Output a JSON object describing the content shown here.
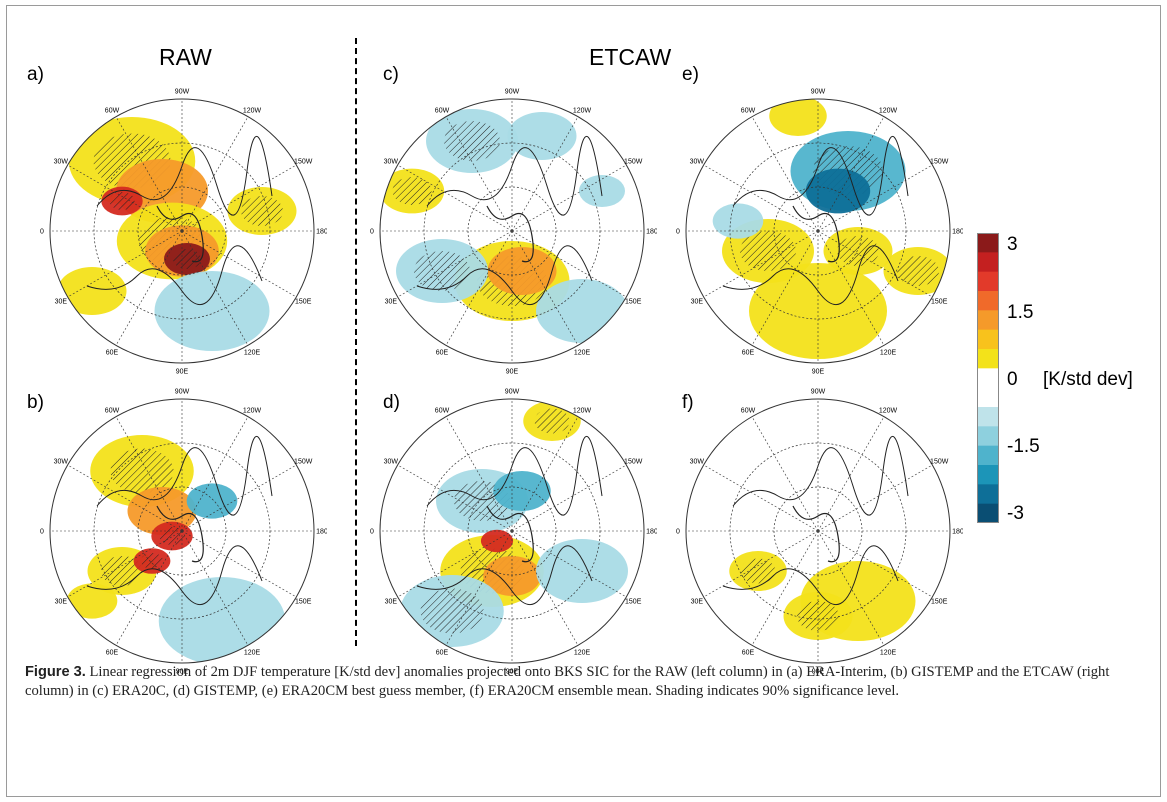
{
  "headers": {
    "left": "RAW",
    "right": "ETCAW"
  },
  "panels": [
    {
      "label": "a)"
    },
    {
      "label": "c)"
    },
    {
      "label": "e)"
    },
    {
      "label": "b)"
    },
    {
      "label": "d)"
    },
    {
      "label": "f)"
    }
  ],
  "longitude_labels": [
    "90W",
    "120W",
    "150W",
    "180",
    "150E",
    "120E",
    "90E",
    "60E",
    "30E",
    "0",
    "30W",
    "60W"
  ],
  "colorbar": {
    "colors": [
      "#8b1a1a",
      "#c42020",
      "#e23a2a",
      "#f06a2a",
      "#f59a2a",
      "#f8c21c",
      "#f3e21a",
      "#ffffff",
      "#ffffff",
      "#bfe3ea",
      "#8ed0de",
      "#4fb3cc",
      "#1c95b8",
      "#0e6f98",
      "#0a4e73"
    ],
    "ticks": [
      {
        "label": "3"
      },
      {
        "label": "1.5"
      },
      {
        "label": "0"
      },
      {
        "label": "-1.5"
      },
      {
        "label": "-3"
      }
    ],
    "unit": "[K/std dev]"
  },
  "caption": {
    "figure_label": "Figure 3.",
    "text": " Linear regression of 2m DJF temperature [K/std dev] anomalies projected onto BKS SIC for the RAW (left column) in (a) ERA-Interim, (b) GISTEMP and the ETCAW (right column) in (c) ERA20C, (d) GISTEMP, (e) ERA20CM best guess member, (f) ERA20CM ensemble mean. Shading indicates 90% significance level."
  }
}
